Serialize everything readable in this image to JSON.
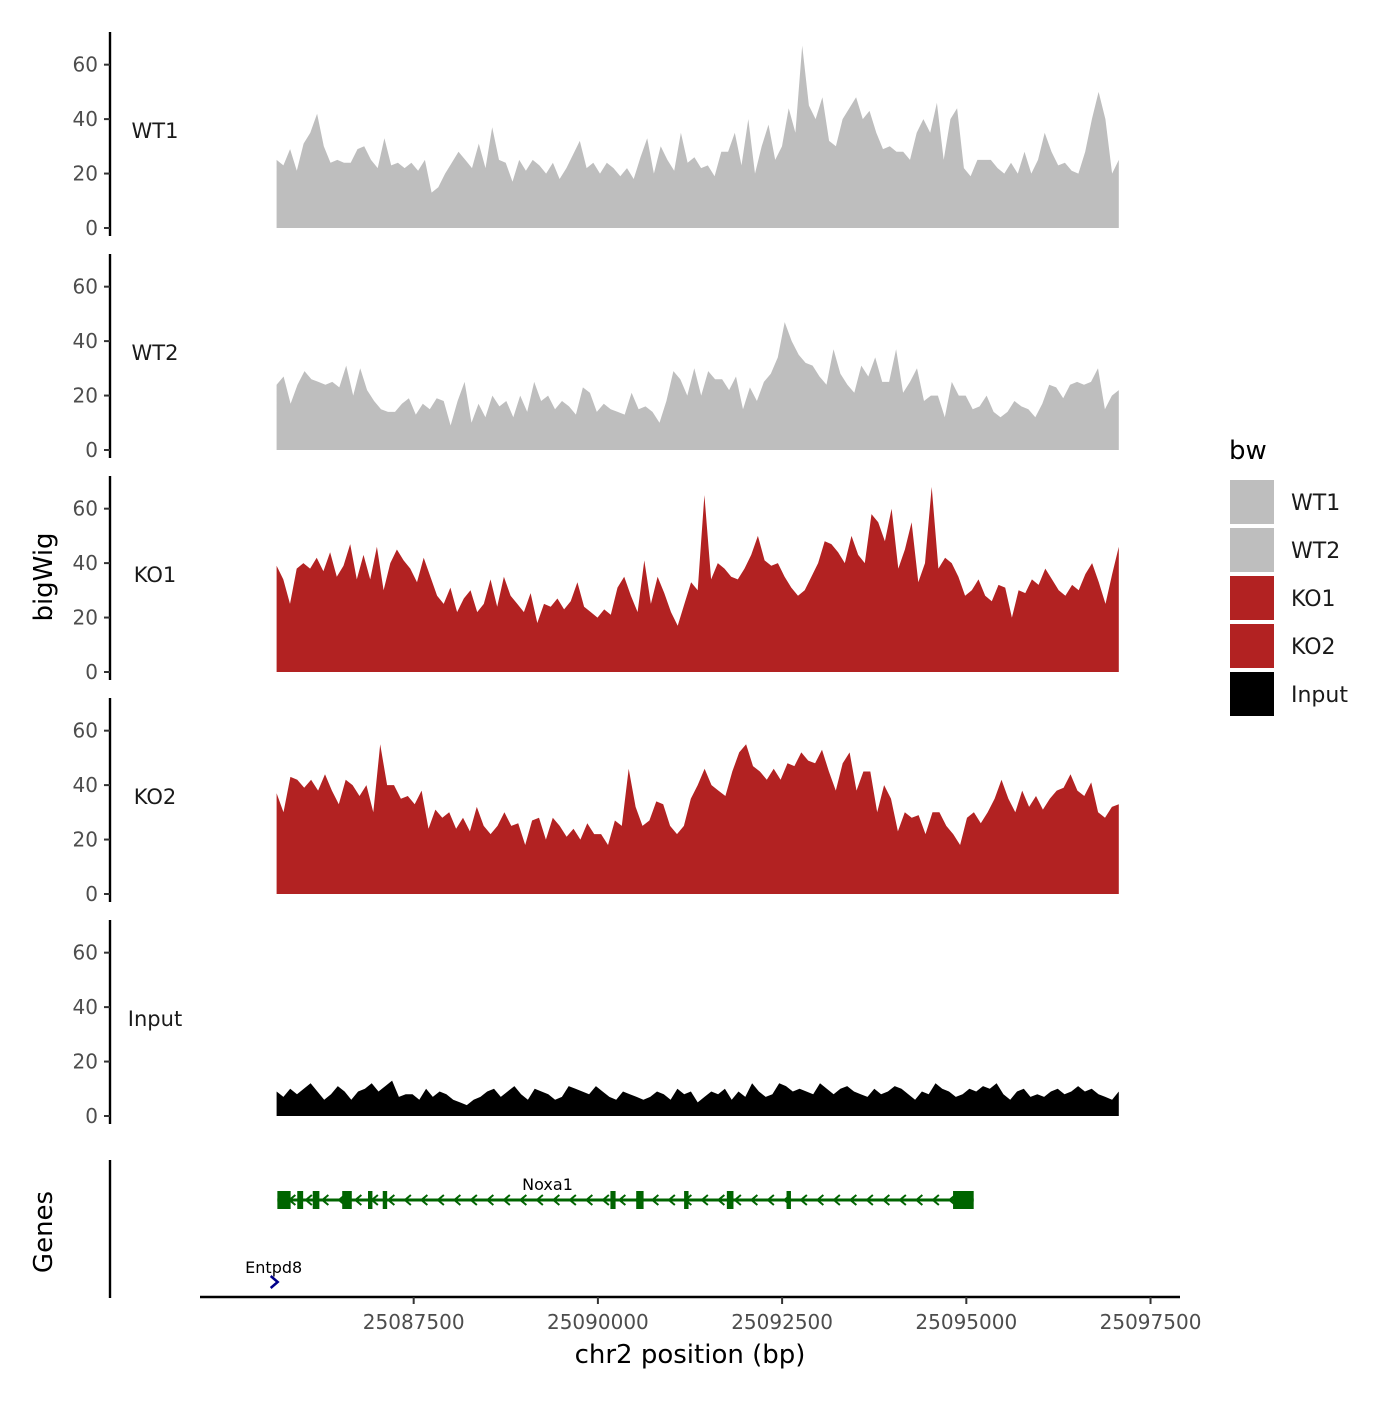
{
  "chart_data": {
    "type": "area",
    "title": "",
    "xlabel": "chr2 position (bp)",
    "ylabel": "bigWig",
    "genes_label": "Genes",
    "region": [
      25085640,
      25097070
    ],
    "xlim": [
      25084600,
      25097900
    ],
    "ylim": [
      0,
      72
    ],
    "x_ticks": [
      25087500,
      25090000,
      25092500,
      25095000,
      25097500
    ],
    "x_tick_labels": [
      "25087500",
      "25090000",
      "25092500",
      "25095000",
      "25097500"
    ],
    "y_ticks": [
      0,
      20,
      40,
      60
    ],
    "y_tick_labels": [
      "0",
      "20",
      "40",
      "60"
    ],
    "legend": {
      "title": "bw",
      "entries": [
        {
          "label": "WT1",
          "color": "#BEBEBE"
        },
        {
          "label": "WT2",
          "color": "#BEBEBE"
        },
        {
          "label": "KO1",
          "color": "#B22222"
        },
        {
          "label": "KO2",
          "color": "#B22222"
        },
        {
          "label": "Input",
          "color": "#000000"
        }
      ]
    },
    "series": [
      {
        "name": "WT1",
        "color": "#BEBEBE",
        "start": 25085640,
        "end": 25097070,
        "values": [
          25,
          23,
          29,
          21,
          31,
          35,
          42,
          30,
          24,
          25,
          24,
          24,
          29,
          30,
          25,
          22,
          33,
          23,
          24,
          22,
          24,
          21,
          25,
          13,
          15,
          20,
          24,
          28,
          25,
          22,
          31,
          22,
          37,
          25,
          24,
          17,
          25,
          21,
          25,
          23,
          20,
          24,
          18,
          22,
          27,
          32,
          22,
          24,
          20,
          24,
          22,
          19,
          22,
          18,
          26,
          33,
          20,
          30,
          25,
          21,
          35,
          24,
          26,
          22,
          23,
          19,
          28,
          28,
          35,
          23,
          40,
          20,
          30,
          38,
          25,
          30,
          44,
          35,
          67,
          45,
          40,
          48,
          32,
          30,
          40,
          44,
          48,
          40,
          43,
          35,
          29,
          30,
          28,
          28,
          25,
          35,
          40,
          35,
          46,
          25,
          40,
          44,
          22,
          19,
          25,
          25,
          25,
          22,
          20,
          24,
          20,
          28,
          20,
          25,
          35,
          28,
          23,
          24,
          21,
          20,
          28,
          40,
          50,
          40,
          20,
          25
        ]
      },
      {
        "name": "WT2",
        "color": "#BEBEBE",
        "start": 25085640,
        "end": 25097070,
        "values": [
          24,
          27,
          17,
          24,
          29,
          26,
          25,
          24,
          25,
          23,
          31,
          20,
          30,
          22,
          18,
          15,
          14,
          14,
          17,
          19,
          13,
          17,
          15,
          19,
          18,
          9,
          18,
          25,
          10,
          17,
          12,
          20,
          16,
          18,
          12,
          20,
          14,
          25,
          18,
          20,
          15,
          18,
          16,
          13,
          23,
          21,
          14,
          17,
          15,
          14,
          13,
          21,
          15,
          16,
          14,
          10,
          18,
          29,
          26,
          20,
          30,
          20,
          29,
          26,
          26,
          22,
          27,
          15,
          23,
          18,
          25,
          28,
          34,
          47,
          40,
          35,
          32,
          31,
          27,
          24,
          37,
          28,
          24,
          21,
          31,
          27,
          34,
          25,
          25,
          37,
          21,
          25,
          30,
          18,
          20,
          20,
          12,
          25,
          20,
          20,
          15,
          16,
          20,
          14,
          12,
          14,
          18,
          16,
          15,
          12,
          17,
          24,
          23,
          19,
          24,
          25,
          24,
          25,
          30,
          15,
          20,
          22
        ]
      },
      {
        "name": "KO1",
        "color": "#B22222",
        "start": 25085640,
        "end": 25097070,
        "values": [
          39,
          34,
          25,
          38,
          40,
          38,
          42,
          37,
          44,
          35,
          39,
          47,
          34,
          43,
          34,
          46,
          30,
          40,
          45,
          41,
          38,
          33,
          42,
          35,
          28,
          25,
          31,
          22,
          27,
          30,
          22,
          25,
          34,
          24,
          35,
          28,
          25,
          22,
          29,
          18,
          25,
          24,
          27,
          23,
          26,
          33,
          24,
          22,
          20,
          23,
          21,
          31,
          35,
          28,
          22,
          41,
          25,
          35,
          29,
          22,
          17,
          25,
          33,
          30,
          65,
          34,
          40,
          38,
          35,
          34,
          38,
          43,
          50,
          41,
          39,
          40,
          35,
          31,
          28,
          30,
          35,
          40,
          48,
          47,
          44,
          40,
          50,
          43,
          40,
          58,
          55,
          48,
          60,
          38,
          45,
          55,
          33,
          40,
          68,
          38,
          42,
          40,
          35,
          28,
          30,
          34,
          28,
          26,
          32,
          31,
          20,
          30,
          29,
          34,
          32,
          38,
          34,
          30,
          28,
          32,
          30,
          36,
          40,
          33,
          25,
          36,
          46
        ]
      },
      {
        "name": "KO2",
        "color": "#B22222",
        "start": 25085640,
        "end": 25097070,
        "values": [
          37,
          30,
          43,
          42,
          39,
          42,
          38,
          44,
          38,
          33,
          42,
          40,
          36,
          40,
          30,
          55,
          40,
          40,
          35,
          36,
          33,
          38,
          24,
          31,
          28,
          30,
          24,
          28,
          23,
          32,
          25,
          22,
          25,
          30,
          25,
          26,
          18,
          27,
          28,
          20,
          28,
          25,
          21,
          24,
          20,
          26,
          22,
          22,
          18,
          27,
          25,
          46,
          32,
          25,
          27,
          34,
          33,
          25,
          22,
          25,
          35,
          40,
          46,
          40,
          38,
          36,
          45,
          52,
          55,
          47,
          45,
          42,
          46,
          42,
          48,
          47,
          52,
          49,
          48,
          53,
          45,
          38,
          48,
          52,
          38,
          45,
          45,
          30,
          40,
          35,
          23,
          30,
          28,
          29,
          22,
          30,
          30,
          25,
          22,
          18,
          28,
          30,
          26,
          30,
          35,
          42,
          35,
          30,
          38,
          32,
          36,
          31,
          35,
          38,
          39,
          44,
          38,
          36,
          41,
          30,
          28,
          32,
          33
        ]
      },
      {
        "name": "Input",
        "color": "#000000",
        "start": 25085640,
        "end": 25097070,
        "values": [
          9,
          7,
          10,
          8,
          10,
          12,
          9,
          6,
          8,
          11,
          9,
          6,
          9,
          10,
          12,
          9,
          11,
          13,
          7,
          8,
          8,
          6,
          10,
          7,
          9,
          8,
          6,
          5,
          4,
          6,
          7,
          9,
          10,
          7,
          9,
          11,
          8,
          6,
          10,
          9,
          8,
          6,
          7,
          11,
          10,
          9,
          8,
          11,
          9,
          7,
          6,
          9,
          8,
          7,
          6,
          7,
          9,
          8,
          6,
          10,
          8,
          9,
          5,
          7,
          9,
          8,
          10,
          6,
          9,
          7,
          12,
          9,
          7,
          8,
          12,
          11,
          9,
          10,
          9,
          8,
          12,
          10,
          8,
          10,
          11,
          9,
          8,
          7,
          10,
          8,
          9,
          11,
          10,
          8,
          6,
          9,
          8,
          12,
          10,
          9,
          7,
          8,
          10,
          9,
          11,
          10,
          12,
          8,
          6,
          9,
          10,
          7,
          8,
          7,
          9,
          10,
          8,
          9,
          11,
          9,
          10,
          8,
          7,
          6,
          9
        ]
      }
    ],
    "genes": [
      {
        "name": "Noxa1",
        "strand": "-",
        "color": "#006400",
        "start": 25085650,
        "end": 25095100,
        "exons": [
          [
            25085650,
            25085830
          ],
          [
            25085920,
            25086000
          ],
          [
            25086130,
            25086220
          ],
          [
            25086530,
            25086660
          ],
          [
            25086880,
            25086940
          ],
          [
            25087080,
            25087140
          ],
          [
            25091170,
            25091230
          ],
          [
            25090170,
            25090240
          ],
          [
            25090520,
            25090620
          ],
          [
            25091750,
            25091840
          ],
          [
            25092560,
            25092620
          ],
          [
            25094820,
            25095100
          ]
        ]
      },
      {
        "name": "Entpd8",
        "strand": "+",
        "color": "#00008B",
        "start": 25085600,
        "end": 25085700,
        "exons": []
      }
    ]
  }
}
